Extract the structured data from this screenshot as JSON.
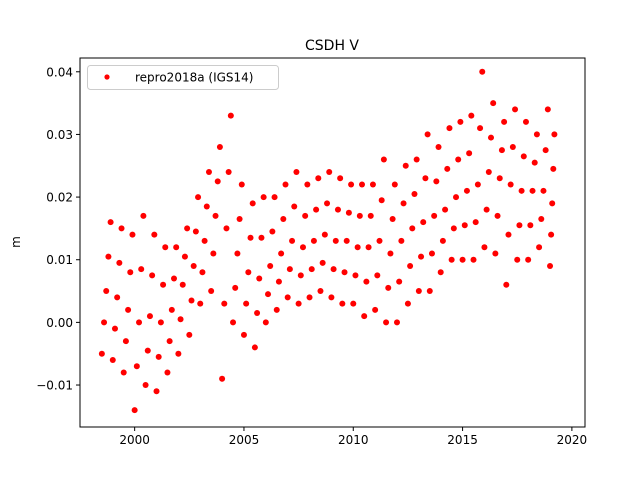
{
  "chart_data": {
    "type": "scatter",
    "title": "CSDH V",
    "xlabel": "",
    "ylabel": "m",
    "xlim": [
      1997.5,
      2020.6
    ],
    "ylim": [
      -0.0167,
      0.0422
    ],
    "xticks": [
      2000,
      2005,
      2010,
      2015,
      2020
    ],
    "xtick_labels": [
      "2000",
      "2005",
      "2010",
      "2015",
      "2020"
    ],
    "yticks": [
      -0.01,
      0.0,
      0.01,
      0.02,
      0.03,
      0.04
    ],
    "ytick_labels": [
      "−0.01",
      "0.00",
      "0.01",
      "0.02",
      "0.03",
      "0.04"
    ],
    "grid": false,
    "legend_position": "top-left",
    "series": [
      {
        "name": "repro2018a (IGS14)",
        "color": "#ff0000",
        "marker": "circle",
        "points": [
          [
            1998.5,
            -0.005
          ],
          [
            1998.6,
            0.0
          ],
          [
            1998.7,
            0.005
          ],
          [
            1998.8,
            0.0105
          ],
          [
            1998.9,
            0.016
          ],
          [
            1999.0,
            -0.006
          ],
          [
            1999.1,
            -0.001
          ],
          [
            1999.2,
            0.004
          ],
          [
            1999.3,
            0.0095
          ],
          [
            1999.4,
            0.015
          ],
          [
            1999.5,
            -0.008
          ],
          [
            1999.6,
            -0.003
          ],
          [
            1999.7,
            0.002
          ],
          [
            1999.8,
            0.008
          ],
          [
            1999.9,
            0.014
          ],
          [
            2000.0,
            -0.014
          ],
          [
            2000.1,
            -0.007
          ],
          [
            2000.2,
            0.0
          ],
          [
            2000.3,
            0.0085
          ],
          [
            2000.4,
            0.017
          ],
          [
            2000.5,
            -0.01
          ],
          [
            2000.6,
            -0.0045
          ],
          [
            2000.7,
            0.001
          ],
          [
            2000.8,
            0.0075
          ],
          [
            2000.9,
            0.014
          ],
          [
            2001.0,
            -0.011
          ],
          [
            2001.1,
            -0.0055
          ],
          [
            2001.2,
            0.0
          ],
          [
            2001.3,
            0.006
          ],
          [
            2001.4,
            0.012
          ],
          [
            2001.5,
            -0.008
          ],
          [
            2001.6,
            -0.003
          ],
          [
            2001.7,
            0.002
          ],
          [
            2001.8,
            0.007
          ],
          [
            2001.9,
            0.012
          ],
          [
            2002.0,
            -0.005
          ],
          [
            2002.1,
            0.0005
          ],
          [
            2002.2,
            0.006
          ],
          [
            2002.3,
            0.0105
          ],
          [
            2002.4,
            0.015
          ],
          [
            2002.5,
            -0.002
          ],
          [
            2002.6,
            0.0035
          ],
          [
            2002.7,
            0.009
          ],
          [
            2002.8,
            0.0145
          ],
          [
            2002.9,
            0.02
          ],
          [
            2003.0,
            0.003
          ],
          [
            2003.1,
            0.008
          ],
          [
            2003.2,
            0.013
          ],
          [
            2003.3,
            0.0185
          ],
          [
            2003.4,
            0.024
          ],
          [
            2003.5,
            0.005
          ],
          [
            2003.6,
            0.011
          ],
          [
            2003.7,
            0.017
          ],
          [
            2003.8,
            0.0225
          ],
          [
            2003.9,
            0.028
          ],
          [
            2004.0,
            -0.009
          ],
          [
            2004.1,
            0.003
          ],
          [
            2004.2,
            0.015
          ],
          [
            2004.3,
            0.024
          ],
          [
            2004.4,
            0.033
          ],
          [
            2004.5,
            0.0
          ],
          [
            2004.6,
            0.0055
          ],
          [
            2004.7,
            0.011
          ],
          [
            2004.8,
            0.0165
          ],
          [
            2004.9,
            0.022
          ],
          [
            2005.0,
            -0.002
          ],
          [
            2005.1,
            0.003
          ],
          [
            2005.2,
            0.008
          ],
          [
            2005.3,
            0.0135
          ],
          [
            2005.4,
            0.019
          ],
          [
            2005.5,
            -0.004
          ],
          [
            2005.6,
            0.0015
          ],
          [
            2005.7,
            0.007
          ],
          [
            2005.8,
            0.0135
          ],
          [
            2005.9,
            0.02
          ],
          [
            2006.0,
            0.0
          ],
          [
            2006.1,
            0.0045
          ],
          [
            2006.2,
            0.009
          ],
          [
            2006.3,
            0.0145
          ],
          [
            2006.4,
            0.02
          ],
          [
            2006.5,
            0.002
          ],
          [
            2006.6,
            0.0065
          ],
          [
            2006.7,
            0.011
          ],
          [
            2006.8,
            0.0165
          ],
          [
            2006.9,
            0.022
          ],
          [
            2007.0,
            0.004
          ],
          [
            2007.1,
            0.0085
          ],
          [
            2007.2,
            0.013
          ],
          [
            2007.3,
            0.0185
          ],
          [
            2007.4,
            0.024
          ],
          [
            2007.5,
            0.003
          ],
          [
            2007.6,
            0.0075
          ],
          [
            2007.7,
            0.012
          ],
          [
            2007.8,
            0.017
          ],
          [
            2007.9,
            0.022
          ],
          [
            2008.0,
            0.004
          ],
          [
            2008.1,
            0.0085
          ],
          [
            2008.2,
            0.013
          ],
          [
            2008.3,
            0.018
          ],
          [
            2008.4,
            0.023
          ],
          [
            2008.5,
            0.005
          ],
          [
            2008.6,
            0.0095
          ],
          [
            2008.7,
            0.014
          ],
          [
            2008.8,
            0.019
          ],
          [
            2008.9,
            0.024
          ],
          [
            2009.0,
            0.004
          ],
          [
            2009.1,
            0.0085
          ],
          [
            2009.2,
            0.013
          ],
          [
            2009.3,
            0.018
          ],
          [
            2009.4,
            0.023
          ],
          [
            2009.5,
            0.003
          ],
          [
            2009.6,
            0.008
          ],
          [
            2009.7,
            0.013
          ],
          [
            2009.8,
            0.0175
          ],
          [
            2009.9,
            0.022
          ],
          [
            2010.0,
            0.003
          ],
          [
            2010.1,
            0.0075
          ],
          [
            2010.2,
            0.012
          ],
          [
            2010.3,
            0.017
          ],
          [
            2010.4,
            0.022
          ],
          [
            2010.5,
            0.001
          ],
          [
            2010.6,
            0.0065
          ],
          [
            2010.7,
            0.012
          ],
          [
            2010.8,
            0.017
          ],
          [
            2010.9,
            0.022
          ],
          [
            2011.0,
            0.002
          ],
          [
            2011.1,
            0.0075
          ],
          [
            2011.2,
            0.013
          ],
          [
            2011.3,
            0.0195
          ],
          [
            2011.4,
            0.026
          ],
          [
            2011.5,
            0.0
          ],
          [
            2011.6,
            0.0055
          ],
          [
            2011.7,
            0.011
          ],
          [
            2011.8,
            0.0165
          ],
          [
            2011.9,
            0.022
          ],
          [
            2012.0,
            0.0
          ],
          [
            2012.1,
            0.0065
          ],
          [
            2012.2,
            0.013
          ],
          [
            2012.3,
            0.019
          ],
          [
            2012.4,
            0.025
          ],
          [
            2012.5,
            0.003
          ],
          [
            2012.6,
            0.009
          ],
          [
            2012.7,
            0.015
          ],
          [
            2012.8,
            0.0205
          ],
          [
            2012.9,
            0.026
          ],
          [
            2013.0,
            0.005
          ],
          [
            2013.1,
            0.0105
          ],
          [
            2013.2,
            0.016
          ],
          [
            2013.3,
            0.023
          ],
          [
            2013.4,
            0.03
          ],
          [
            2013.5,
            0.005
          ],
          [
            2013.6,
            0.011
          ],
          [
            2013.7,
            0.017
          ],
          [
            2013.8,
            0.0225
          ],
          [
            2013.9,
            0.028
          ],
          [
            2014.0,
            0.008
          ],
          [
            2014.1,
            0.013
          ],
          [
            2014.2,
            0.018
          ],
          [
            2014.3,
            0.0245
          ],
          [
            2014.4,
            0.031
          ],
          [
            2014.5,
            0.01
          ],
          [
            2014.6,
            0.015
          ],
          [
            2014.7,
            0.02
          ],
          [
            2014.8,
            0.026
          ],
          [
            2014.9,
            0.032
          ],
          [
            2015.0,
            0.01
          ],
          [
            2015.1,
            0.0155
          ],
          [
            2015.2,
            0.021
          ],
          [
            2015.3,
            0.027
          ],
          [
            2015.4,
            0.033
          ],
          [
            2015.5,
            0.01
          ],
          [
            2015.6,
            0.016
          ],
          [
            2015.7,
            0.022
          ],
          [
            2015.8,
            0.031
          ],
          [
            2015.9,
            0.04
          ],
          [
            2016.0,
            0.012
          ],
          [
            2016.1,
            0.018
          ],
          [
            2016.2,
            0.024
          ],
          [
            2016.3,
            0.0295
          ],
          [
            2016.4,
            0.035
          ],
          [
            2016.5,
            0.011
          ],
          [
            2016.6,
            0.017
          ],
          [
            2016.7,
            0.023
          ],
          [
            2016.8,
            0.0275
          ],
          [
            2016.9,
            0.032
          ],
          [
            2017.0,
            0.006
          ],
          [
            2017.1,
            0.014
          ],
          [
            2017.2,
            0.022
          ],
          [
            2017.3,
            0.028
          ],
          [
            2017.4,
            0.034
          ],
          [
            2017.5,
            0.01
          ],
          [
            2017.6,
            0.0155
          ],
          [
            2017.7,
            0.021
          ],
          [
            2017.8,
            0.0265
          ],
          [
            2017.9,
            0.032
          ],
          [
            2018.0,
            0.01
          ],
          [
            2018.1,
            0.0155
          ],
          [
            2018.2,
            0.021
          ],
          [
            2018.3,
            0.0255
          ],
          [
            2018.4,
            0.03
          ],
          [
            2018.5,
            0.012
          ],
          [
            2018.6,
            0.0165
          ],
          [
            2018.7,
            0.021
          ],
          [
            2018.8,
            0.0275
          ],
          [
            2018.9,
            0.034
          ],
          [
            2019.0,
            0.009
          ],
          [
            2019.05,
            0.014
          ],
          [
            2019.1,
            0.019
          ],
          [
            2019.15,
            0.0245
          ],
          [
            2019.2,
            0.03
          ]
        ]
      }
    ]
  }
}
